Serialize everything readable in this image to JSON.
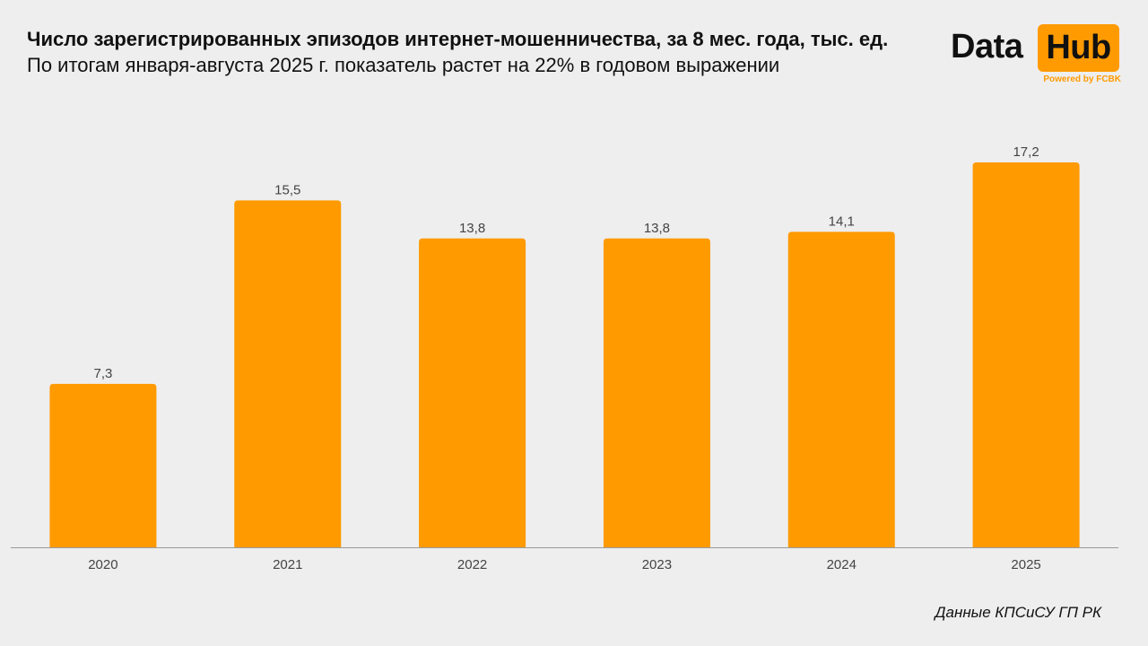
{
  "header": {
    "title": "Число зарегистрированных эпизодов интернет-мошенничества, за 8 мес. года, тыс. ед.",
    "subtitle": "По итогам января-августа 2025 г. показатель растет на 22% в годовом выражении"
  },
  "logo": {
    "word1": "Data",
    "word2": "Hub",
    "tagline": "Powered by FCBK"
  },
  "source": "Данные КПСиСУ ГП РК",
  "colors": {
    "bar": "#ff9a00",
    "background": "#eeeeee",
    "axis": "#9a9a9a",
    "text": "#111111",
    "label": "#444444"
  },
  "chart_data": {
    "type": "bar",
    "title": "Число зарегистрированных эпизодов интернет-мошенничества, за 8 мес. года, тыс. ед.",
    "subtitle": "По итогам января-августа 2025 г. показатель растет на 22% в годовом выражении",
    "categories": [
      "2020",
      "2021",
      "2022",
      "2023",
      "2024",
      "2025"
    ],
    "values": [
      7.3,
      15.5,
      13.8,
      13.8,
      14.1,
      17.2
    ],
    "value_labels": [
      "7,3",
      "15,5",
      "13,8",
      "13,8",
      "14,1",
      "17,2"
    ],
    "xlabel": "",
    "ylabel": "",
    "ylim": [
      0,
      17.2
    ],
    "grid": false,
    "legend": "none"
  }
}
